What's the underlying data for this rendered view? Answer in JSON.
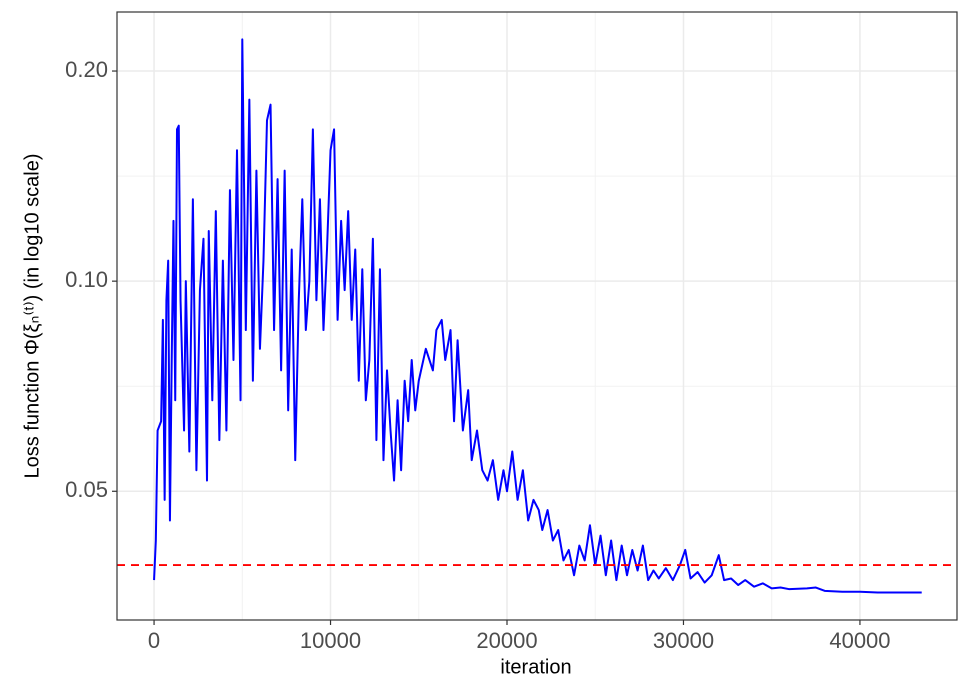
{
  "chart_data": {
    "type": "line",
    "x_label": "iteration",
    "y_label": "Loss function  Φ(ξₙ⁽ᵗ⁾)   (in log10 scale)",
    "y_scale": "log",
    "grid": true,
    "xlim": [
      -2100,
      45500
    ],
    "ylim": [
      0.0327,
      0.243
    ],
    "xticks": [
      0,
      10000,
      20000,
      30000,
      40000
    ],
    "yticks": [
      {
        "value": 0.05,
        "label": "0.05"
      },
      {
        "value": 0.1,
        "label": "0.10"
      },
      {
        "value": 0.2,
        "label": "0.20"
      }
    ],
    "x_minor_grid": [
      5000,
      15000,
      25000,
      35000
    ],
    "y_minor_grid": [
      0.0707,
      0.1414
    ],
    "hline": {
      "value": 0.0392,
      "color": "#ff0000"
    },
    "x": [
      0,
      100,
      200,
      400,
      500,
      600,
      700,
      800,
      900,
      1000,
      1100,
      1200,
      1300,
      1400,
      1500,
      1700,
      1800,
      2000,
      2200,
      2400,
      2600,
      2800,
      3000,
      3100,
      3300,
      3500,
      3700,
      3900,
      4100,
      4300,
      4500,
      4700,
      4900,
      5000,
      5200,
      5400,
      5600,
      5800,
      6000,
      6200,
      6400,
      6600,
      6800,
      7000,
      7200,
      7400,
      7600,
      7800,
      8000,
      8200,
      8400,
      8600,
      8800,
      9000,
      9200,
      9400,
      9600,
      9800,
      10000,
      10200,
      10400,
      10600,
      10800,
      11000,
      11200,
      11400,
      11600,
      11800,
      12000,
      12200,
      12400,
      12600,
      12800,
      13000,
      13200,
      13400,
      13600,
      13800,
      14000,
      14200,
      14400,
      14600,
      14800,
      15000,
      15400,
      15800,
      16000,
      16300,
      16500,
      16800,
      17000,
      17200,
      17500,
      17800,
      18000,
      18300,
      18600,
      18900,
      19200,
      19500,
      19800,
      20000,
      20300,
      20600,
      20900,
      21200,
      21500,
      21800,
      22000,
      22300,
      22600,
      22900,
      23200,
      23500,
      23800,
      24100,
      24400,
      24700,
      25000,
      25300,
      25600,
      25900,
      26200,
      26500,
      26800,
      27100,
      27400,
      27700,
      28000,
      28300,
      28600,
      29000,
      29400,
      29800,
      30100,
      30400,
      30800,
      31200,
      31600,
      32000,
      32300,
      32700,
      33100,
      33500,
      34000,
      34500,
      35000,
      35500,
      36000,
      37000,
      37500,
      38000,
      39000,
      40000,
      41000,
      42000,
      43500
    ],
    "series": [
      {
        "color": "#0000ff",
        "values": [
          0.0373,
          0.0425,
          0.0611,
          0.063,
          0.088,
          0.0486,
          0.0939,
          0.107,
          0.0454,
          0.0771,
          0.122,
          0.0675,
          0.165,
          0.167,
          0.0939,
          0.0611,
          0.1,
          0.057,
          0.131,
          0.0536,
          0.0971,
          0.115,
          0.0518,
          0.118,
          0.0675,
          0.126,
          0.0592,
          0.107,
          0.0611,
          0.135,
          0.0771,
          0.154,
          0.0675,
          0.222,
          0.0851,
          0.182,
          0.072,
          0.144,
          0.08,
          0.107,
          0.17,
          0.179,
          0.0851,
          0.14,
          0.0745,
          0.144,
          0.0653,
          0.111,
          0.0554,
          0.0939,
          0.131,
          0.0851,
          0.1,
          0.165,
          0.0939,
          0.131,
          0.0851,
          0.111,
          0.154,
          0.165,
          0.088,
          0.122,
          0.0971,
          0.126,
          0.088,
          0.111,
          0.072,
          0.104,
          0.0675,
          0.0771,
          0.115,
          0.0592,
          0.104,
          0.0554,
          0.0745,
          0.0611,
          0.0518,
          0.0675,
          0.0536,
          0.072,
          0.063,
          0.0771,
          0.0653,
          0.072,
          0.08,
          0.0745,
          0.0851,
          0.088,
          0.0771,
          0.0851,
          0.063,
          0.0823,
          0.0611,
          0.0698,
          0.0554,
          0.0611,
          0.0536,
          0.0518,
          0.0554,
          0.0486,
          0.0536,
          0.05,
          0.057,
          0.0486,
          0.0536,
          0.0454,
          0.0486,
          0.047,
          0.044,
          0.047,
          0.0425,
          0.044,
          0.0398,
          0.0412,
          0.0379,
          0.0418,
          0.0398,
          0.0447,
          0.0392,
          0.0432,
          0.0379,
          0.0425,
          0.0373,
          0.0418,
          0.0379,
          0.0412,
          0.0385,
          0.0418,
          0.0373,
          0.0385,
          0.0375,
          0.0388,
          0.0373,
          0.0392,
          0.0412,
          0.0375,
          0.0383,
          0.037,
          0.0379,
          0.0405,
          0.0373,
          0.0375,
          0.0367,
          0.0373,
          0.0365,
          0.0369,
          0.0363,
          0.0364,
          0.0362,
          0.0363,
          0.0364,
          0.036,
          0.0359,
          0.0359,
          0.0358,
          0.0358,
          0.0358
        ]
      }
    ]
  }
}
